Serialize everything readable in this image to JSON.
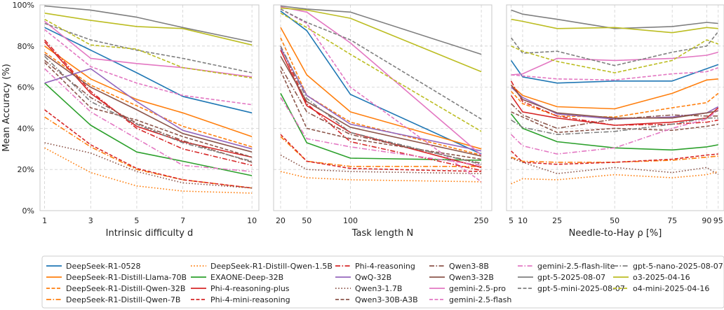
{
  "chart_data": [
    {
      "type": "line",
      "title": "",
      "xlabel": "Intrinsic difficulty d",
      "ylabel": "Mean Accuracy (%)",
      "xlim": [
        0.8,
        10.3
      ],
      "ylim": [
        0,
        100
      ],
      "x": [
        1,
        3,
        5,
        7,
        10
      ],
      "xticks": [
        "1",
        "3",
        "5",
        "7",
        "10"
      ],
      "yticks": [
        "0%",
        "20%",
        "40%",
        "60%",
        "80%",
        "100%"
      ],
      "grid": true,
      "series": [
        {
          "name": "DeepSeek-R1-0528",
          "values": [
            89,
            78,
            67,
            55.5,
            47.5
          ]
        },
        {
          "name": "DeepSeek-R1-Distill-Llama-70B",
          "values": [
            80,
            64,
            54,
            47.5,
            36
          ]
        },
        {
          "name": "DeepSeek-R1-Distill-Qwen-32B",
          "values": [
            77,
            61,
            51,
            41,
            31
          ]
        },
        {
          "name": "DeepSeek-R1-Distill-Qwen-7B",
          "values": [
            45.5,
            31,
            20,
            15,
            11
          ]
        },
        {
          "name": "DeepSeek-R1-Distill-Qwen-1.5B",
          "values": [
            30.5,
            18.5,
            12,
            9.5,
            8.5
          ]
        },
        {
          "name": "EXAONE-Deep-32B",
          "values": [
            62,
            41.5,
            28.5,
            24,
            17
          ]
        },
        {
          "name": "Phi-4-reasoning-plus",
          "values": [
            82,
            57,
            41,
            33.5,
            26
          ]
        },
        {
          "name": "Phi-4-mini-reasoning",
          "values": [
            49,
            32,
            20.5,
            15,
            11
          ]
        },
        {
          "name": "Phi-4-reasoning",
          "values": [
            83,
            58,
            40,
            30,
            22
          ]
        },
        {
          "name": "QwQ-32B",
          "values": [
            62,
            69,
            53,
            39,
            30
          ]
        },
        {
          "name": "Qwen3-1.7B",
          "values": [
            33,
            28,
            19,
            13.5,
            11
          ]
        },
        {
          "name": "Qwen3-30B-A3B",
          "values": [
            72,
            50,
            44,
            36,
            26
          ]
        },
        {
          "name": "Qwen3-32B",
          "values": [
            76,
            60,
            49,
            37.5,
            28.5
          ]
        },
        {
          "name": "Qwen3-8B",
          "values": [
            73,
            55,
            42.5,
            34,
            23.5
          ]
        },
        {
          "name": "gemini-2.5-flash-lite",
          "values": [
            69,
            48,
            35,
            22,
            19
          ]
        },
        {
          "name": "gemini-2.5-pro",
          "values": [
            92,
            74,
            71.5,
            69.5,
            65
          ]
        },
        {
          "name": "gemini-2.5-flash",
          "values": [
            88,
            70,
            62,
            56,
            51.5
          ]
        },
        {
          "name": "gpt-5-mini-2025-08-07",
          "values": [
            91,
            83,
            78,
            74,
            67
          ]
        },
        {
          "name": "gpt-5-nano-2025-08-07",
          "values": [
            75,
            53,
            42,
            33,
            24
          ]
        },
        {
          "name": "gpt-5-2025-08-07",
          "values": [
            99.5,
            97.5,
            94,
            89,
            82
          ]
        },
        {
          "name": "o3-2025-04-16",
          "values": [
            96,
            92.5,
            89.5,
            88.5,
            80.5
          ]
        },
        {
          "name": "o4-mini-2025-04-16",
          "values": [
            93,
            80.5,
            78.5,
            69.5,
            64.5
          ]
        }
      ]
    },
    {
      "type": "line",
      "title": "",
      "xlabel": "Task length N",
      "ylabel": "",
      "xlim": [
        12,
        262
      ],
      "ylim": [
        0,
        100
      ],
      "x": [
        20,
        50,
        100,
        250
      ],
      "xticks": [
        "20",
        "50",
        "100",
        "250"
      ],
      "grid": true,
      "series": [
        {
          "name": "DeepSeek-R1-0528",
          "values": [
            97,
            87.5,
            56.5,
            27.5
          ]
        },
        {
          "name": "DeepSeek-R1-Distill-Llama-70B",
          "values": [
            89,
            66,
            48,
            30
          ]
        },
        {
          "name": "DeepSeek-R1-Distill-Qwen-32B",
          "values": [
            84,
            56,
            43,
            27
          ]
        },
        {
          "name": "DeepSeek-R1-Distill-Qwen-7B",
          "values": [
            36,
            24,
            21.5,
            21.5
          ]
        },
        {
          "name": "DeepSeek-R1-Distill-Qwen-1.5B",
          "values": [
            19,
            16,
            15,
            14
          ]
        },
        {
          "name": "EXAONE-Deep-32B",
          "values": [
            57,
            33,
            25.5,
            24.5
          ]
        },
        {
          "name": "Phi-4-reasoning-plus",
          "values": [
            78,
            51,
            38,
            21
          ]
        },
        {
          "name": "Phi-4-mini-reasoning",
          "values": [
            37,
            24,
            20.5,
            19
          ]
        },
        {
          "name": "Phi-4-reasoning",
          "values": [
            80,
            52,
            33.5,
            19.5
          ]
        },
        {
          "name": "QwQ-32B",
          "values": [
            79,
            56,
            42,
            29
          ]
        },
        {
          "name": "Qwen3-1.7B",
          "values": [
            27,
            20,
            19,
            18
          ]
        },
        {
          "name": "Qwen3-30B-A3B",
          "values": [
            68,
            40,
            35,
            25
          ]
        },
        {
          "name": "Qwen3-32B",
          "values": [
            75,
            53,
            40.5,
            26.5
          ]
        },
        {
          "name": "Qwen3-8B",
          "values": [
            70,
            48,
            37,
            23
          ]
        },
        {
          "name": "gemini-2.5-flash-lite",
          "values": [
            55,
            35,
            31,
            22
          ]
        },
        {
          "name": "gemini-2.5-pro",
          "values": [
            99,
            96.5,
            81.5,
            27
          ]
        },
        {
          "name": "gemini-2.5-flash",
          "values": [
            98,
            91,
            60,
            14
          ]
        },
        {
          "name": "gpt-5-mini-2025-08-07",
          "values": [
            98,
            91.5,
            83,
            44.5
          ]
        },
        {
          "name": "gpt-5-nano-2025-08-07",
          "values": [
            80,
            54.5,
            38,
            22.5
          ]
        },
        {
          "name": "gpt-5-2025-08-07",
          "values": [
            99.5,
            98,
            96.5,
            76
          ]
        },
        {
          "name": "o3-2025-04-16",
          "values": [
            98.5,
            97.5,
            93.5,
            67.5
          ]
        },
        {
          "name": "o4-mini-2025-04-16",
          "values": [
            96,
            89,
            76,
            38.5
          ]
        }
      ]
    },
    {
      "type": "line",
      "title": "",
      "xlabel": "Needle-to-Hay ρ [%]",
      "ylabel": "",
      "xlim": [
        3,
        97.5
      ],
      "ylim": [
        0,
        100
      ],
      "x": [
        5,
        10,
        25,
        50,
        75,
        90,
        95
      ],
      "xticks": [
        "5",
        "10",
        "25",
        "50",
        "75",
        "90",
        "95"
      ],
      "grid": true,
      "series": [
        {
          "name": "DeepSeek-R1-0528",
          "values": [
            73,
            65,
            62,
            63,
            63,
            69,
            71
          ]
        },
        {
          "name": "DeepSeek-R1-Distill-Llama-70B",
          "values": [
            61,
            56,
            50.5,
            49.5,
            57,
            63.5,
            64
          ]
        },
        {
          "name": "DeepSeek-R1-Distill-Qwen-32B",
          "values": [
            58,
            52,
            46,
            45.5,
            50,
            52.5,
            57
          ]
        },
        {
          "name": "DeepSeek-R1-Distill-Qwen-7B",
          "values": [
            26,
            24,
            23.5,
            23.5,
            24.5,
            26,
            26.5
          ]
        },
        {
          "name": "DeepSeek-R1-Distill-Qwen-1.5B",
          "values": [
            13,
            15.5,
            15,
            17.5,
            16,
            17.5,
            19
          ]
        },
        {
          "name": "EXAONE-Deep-32B",
          "values": [
            47,
            40,
            33.5,
            30.5,
            29.5,
            31,
            32
          ]
        },
        {
          "name": "Phi-4-reasoning-plus",
          "values": [
            56,
            48,
            45,
            41.5,
            43,
            45,
            50
          ]
        },
        {
          "name": "Phi-4-mini-reasoning",
          "values": [
            29,
            23.5,
            22.5,
            23.5,
            25,
            27,
            27.5
          ]
        },
        {
          "name": "Phi-4-reasoning",
          "values": [
            63,
            53,
            46,
            41.5,
            42,
            43,
            44
          ]
        },
        {
          "name": "QwQ-32B",
          "values": [
            60,
            55,
            47,
            44.5,
            45.5,
            47.5,
            50.5
          ]
        },
        {
          "name": "Qwen3-1.7B",
          "values": [
            25.5,
            23.5,
            18,
            21,
            18.5,
            21,
            17.5
          ]
        },
        {
          "name": "Qwen3-30B-A3B",
          "values": [
            48,
            45.5,
            38,
            40,
            39,
            41,
            42
          ]
        },
        {
          "name": "Qwen3-32B",
          "values": [
            61,
            54,
            47.5,
            45,
            45,
            47.5,
            48.5
          ]
        },
        {
          "name": "Qwen3-8B",
          "values": [
            52,
            46.5,
            40,
            44.5,
            46.5,
            46,
            46
          ]
        },
        {
          "name": "gemini-2.5-flash-lite",
          "values": [
            37,
            31.5,
            27.5,
            30.5,
            40,
            44.5,
            49
          ]
        },
        {
          "name": "gemini-2.5-pro",
          "values": [
            66,
            66.5,
            74,
            73,
            74,
            75.5,
            77
          ]
        },
        {
          "name": "gemini-2.5-flash",
          "values": [
            66,
            65.5,
            64,
            63.5,
            66.5,
            67.5,
            69.5
          ]
        },
        {
          "name": "gpt-5-mini-2025-08-07",
          "values": [
            84,
            76.5,
            77.5,
            70.5,
            77,
            80,
            87
          ]
        },
        {
          "name": "gpt-5-nano-2025-08-07",
          "values": [
            44,
            40.5,
            37,
            38.5,
            42,
            45,
            45
          ]
        },
        {
          "name": "gpt-5-2025-08-07",
          "values": [
            97.5,
            95.5,
            93,
            88.5,
            89.5,
            91.5,
            91
          ]
        },
        {
          "name": "o3-2025-04-16",
          "values": [
            93,
            92,
            88.5,
            89,
            86.5,
            89,
            88.5
          ]
        },
        {
          "name": "o4-mini-2025-04-16",
          "values": [
            80,
            77.5,
            72.5,
            67,
            73,
            83,
            81
          ]
        }
      ]
    }
  ],
  "style": {
    "DeepSeek-R1-0528": {
      "color": "#1f77b4",
      "dash": "solid"
    },
    "DeepSeek-R1-Distill-Llama-70B": {
      "color": "#ff7f0e",
      "dash": "solid"
    },
    "DeepSeek-R1-Distill-Qwen-32B": {
      "color": "#ff7f0e",
      "dash": "dashed"
    },
    "DeepSeek-R1-Distill-Qwen-7B": {
      "color": "#ff7f0e",
      "dash": "dashdot"
    },
    "DeepSeek-R1-Distill-Qwen-1.5B": {
      "color": "#ff7f0e",
      "dash": "dotted"
    },
    "EXAONE-Deep-32B": {
      "color": "#2ca02c",
      "dash": "solid"
    },
    "Phi-4-reasoning-plus": {
      "color": "#d62728",
      "dash": "solid"
    },
    "Phi-4-mini-reasoning": {
      "color": "#d62728",
      "dash": "dashed"
    },
    "Phi-4-reasoning": {
      "color": "#d62728",
      "dash": "dashdot"
    },
    "QwQ-32B": {
      "color": "#9467bd",
      "dash": "solid"
    },
    "Qwen3-1.7B": {
      "color": "#8c564b",
      "dash": "dotted"
    },
    "Qwen3-30B-A3B": {
      "color": "#8c564b",
      "dash": "dashed"
    },
    "Qwen3-32B": {
      "color": "#8c564b",
      "dash": "solid"
    },
    "Qwen3-8B": {
      "color": "#8c564b",
      "dash": "dashdot"
    },
    "gemini-2.5-flash-lite": {
      "color": "#e377c2",
      "dash": "dashdot"
    },
    "gemini-2.5-pro": {
      "color": "#e377c2",
      "dash": "solid"
    },
    "gemini-2.5-flash": {
      "color": "#e377c2",
      "dash": "dashed"
    },
    "gpt-5-mini-2025-08-07": {
      "color": "#7f7f7f",
      "dash": "dashed"
    },
    "gpt-5-nano-2025-08-07": {
      "color": "#7f7f7f",
      "dash": "dashdot"
    },
    "gpt-5-2025-08-07": {
      "color": "#7f7f7f",
      "dash": "solid"
    },
    "o3-2025-04-16": {
      "color": "#bcbd22",
      "dash": "solid"
    },
    "o4-mini-2025-04-16": {
      "color": "#bcbd22",
      "dash": "dashed"
    }
  },
  "legend": {
    "placement": "bottom-center",
    "columns": [
      [
        "DeepSeek-R1-0528",
        "DeepSeek-R1-Distill-Llama-70B",
        "DeepSeek-R1-Distill-Qwen-32B",
        "DeepSeek-R1-Distill-Qwen-7B"
      ],
      [
        "DeepSeek-R1-Distill-Qwen-1.5B",
        "EXAONE-Deep-32B",
        "Phi-4-reasoning-plus",
        "Phi-4-mini-reasoning"
      ],
      [
        "Phi-4-reasoning",
        "QwQ-32B",
        "Qwen3-1.7B",
        "Qwen3-30B-A3B"
      ],
      [
        "Qwen3-8B",
        "Qwen3-32B",
        "gemini-2.5-pro",
        "gemini-2.5-flash"
      ],
      [
        "gemini-2.5-flash-lite",
        "gpt-5-2025-08-07",
        "gpt-5-mini-2025-08-07"
      ],
      [
        "gpt-5-nano-2025-08-07",
        "o3-2025-04-16",
        "o4-mini-2025-04-16"
      ]
    ]
  }
}
